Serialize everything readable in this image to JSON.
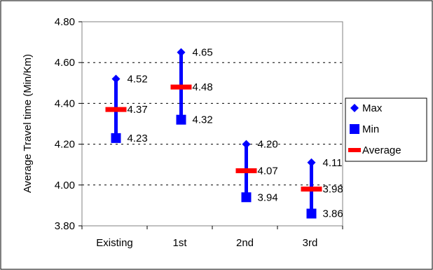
{
  "chart_data": {
    "type": "range",
    "title": "",
    "xlabel": "",
    "ylabel": "Average Travel time (Min/Km)",
    "ylim": [
      3.8,
      4.8
    ],
    "yticks": [
      "3.80",
      "4.00",
      "4.20",
      "4.40",
      "4.60",
      "4.80"
    ],
    "grid": true,
    "legend_position": "right",
    "categories": [
      "Existing",
      "1st",
      "2nd",
      "3rd"
    ],
    "series": [
      {
        "name": "Max",
        "marker": "diamond",
        "color": "#0000ff",
        "values": [
          4.52,
          4.65,
          4.2,
          4.11
        ],
        "labels": [
          "4.52",
          "4.65",
          "4.20",
          "4.11"
        ]
      },
      {
        "name": "Min",
        "marker": "square",
        "color": "#0000ff",
        "values": [
          4.23,
          4.32,
          3.94,
          3.86
        ],
        "labels": [
          "4.23",
          "4.32",
          "3.94",
          "3.86"
        ]
      },
      {
        "name": "Average",
        "marker": "dash",
        "color": "#ff0000",
        "values": [
          4.37,
          4.48,
          4.07,
          3.98
        ],
        "labels": [
          "4.37",
          "4.48",
          "4.07",
          "3.98"
        ]
      }
    ],
    "range_bar_color": "#0000ff"
  }
}
